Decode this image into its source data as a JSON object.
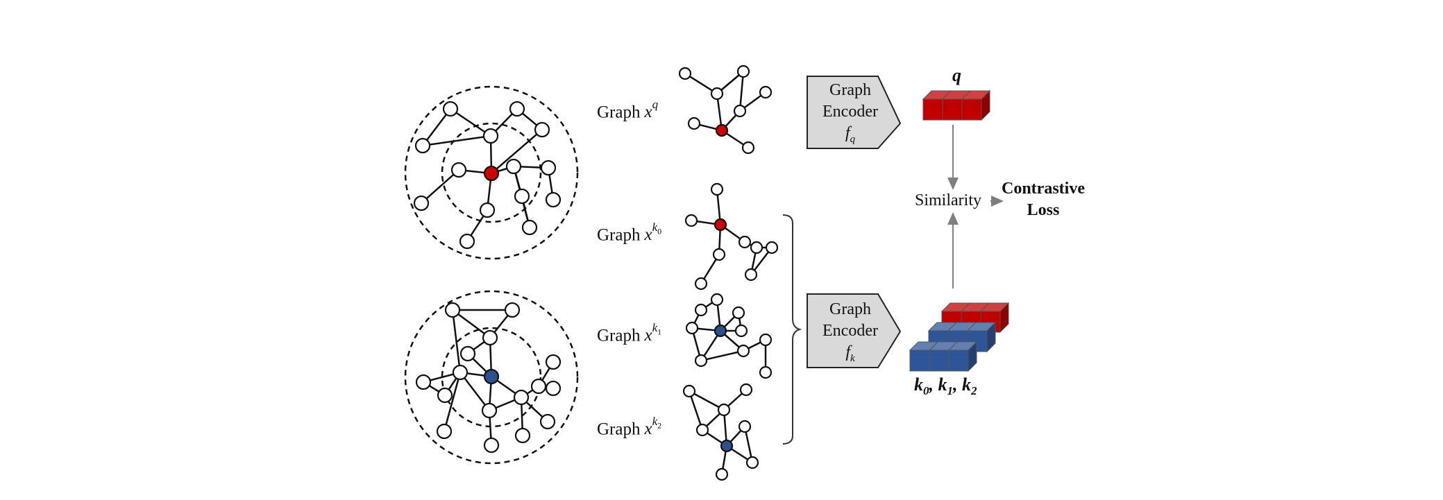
{
  "labels": {
    "graph_q": {
      "text": "Graph",
      "var": "x",
      "sup": "q",
      "sub": ""
    },
    "graph_k0": {
      "text": "Graph",
      "var": "x",
      "sup": "k",
      "sub": "0"
    },
    "graph_k1": {
      "text": "Graph",
      "var": "x",
      "sup": "k",
      "sub": "1"
    },
    "graph_k2": {
      "text": "Graph",
      "var": "x",
      "sup": "k",
      "sub": "2"
    },
    "encoder_q": {
      "line1": "Graph",
      "line2": "Encoder",
      "f": "f",
      "sub": "q"
    },
    "encoder_k": {
      "line1": "Graph",
      "line2": "Encoder",
      "f": "f",
      "sub": "k"
    },
    "query_vector": "q",
    "key_vectors": {
      "k0": "k",
      "k0_sub": "0",
      "k1": "k",
      "k1_sub": "1",
      "k2": "k",
      "k2_sub": "2",
      "sep": ","
    },
    "similarity": "Similarity",
    "loss_line1": "Contrastive",
    "loss_line2": "Loss"
  },
  "colors": {
    "query_node": "#cc0000",
    "key_node": "#2f4f8f",
    "query_vector": "#c00000",
    "key_vector": "#2e5597",
    "encoder_fill": "#d9d9d9",
    "arrow": "#7f7f7f",
    "node_stroke": "#000000"
  },
  "icons": {
    "encoder_shape": "pentagon-arrow-shape",
    "vector_shape": "3d-block-row"
  }
}
